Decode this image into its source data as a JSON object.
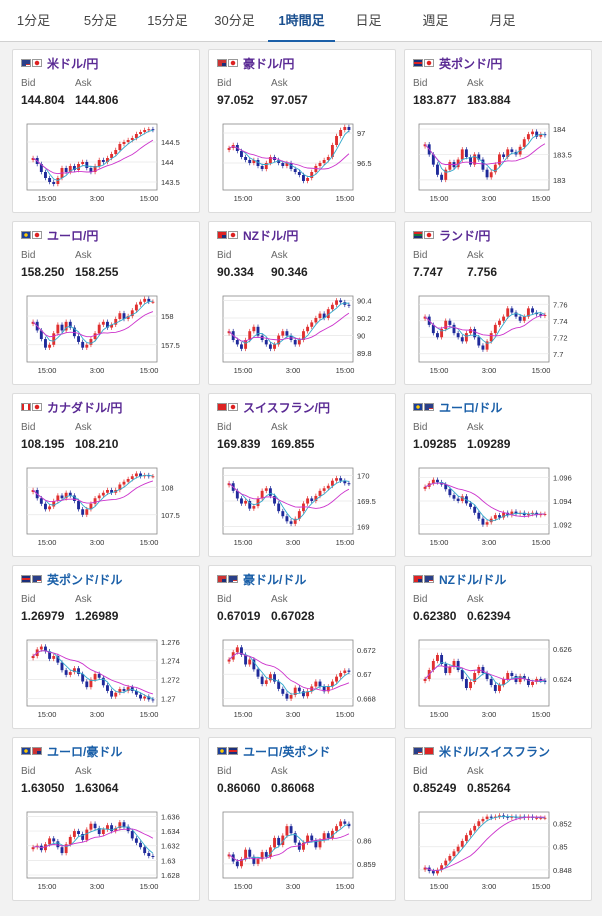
{
  "tabs": [
    {
      "label": "1分足",
      "active": false
    },
    {
      "label": "5分足",
      "active": false
    },
    {
      "label": "15分足",
      "active": false
    },
    {
      "label": "30分足",
      "active": false
    },
    {
      "label": "1時間足",
      "active": true
    },
    {
      "label": "日足",
      "active": false
    },
    {
      "label": "週足",
      "active": false
    },
    {
      "label": "月足",
      "active": false
    }
  ],
  "labels": {
    "bid": "Bid",
    "ask": "Ask"
  },
  "colors": {
    "up": "#e03030",
    "down": "#1f2a9a",
    "ma_short": "#33aacc",
    "ma_long": "#cc33cc",
    "jpy_pair": "#5a2a94",
    "usd_pair": "#1a5fa8"
  },
  "x_ticks": [
    "15:00",
    "3:00",
    "15:00"
  ],
  "cards": [
    {
      "pair": "米ドル/円",
      "quote": "jpy",
      "flags": [
        "us-flag-icon",
        "jp-flag-icon"
      ],
      "bid": "144.804",
      "ask": "144.806",
      "chart_data": {
        "type": "candlestick",
        "y_ticks": [
          "144.5",
          "144",
          "143.5"
        ],
        "ylim": [
          143.3,
          144.95
        ],
        "x_ticks": [
          "15:00",
          "3:00",
          "15:00"
        ],
        "close": [
          144.1,
          143.95,
          143.75,
          143.6,
          143.5,
          143.45,
          143.6,
          143.85,
          143.75,
          143.9,
          143.8,
          143.95,
          144.0,
          143.85,
          143.75,
          143.9,
          144.05,
          144.0,
          144.1,
          144.2,
          144.3,
          144.45,
          144.5,
          144.55,
          144.6,
          144.7,
          144.75,
          144.8,
          144.82,
          144.8
        ]
      }
    },
    {
      "pair": "豪ドル/円",
      "quote": "jpy",
      "flags": [
        "au-flag-icon",
        "jp-flag-icon"
      ],
      "bid": "97.052",
      "ask": "97.057",
      "chart_data": {
        "type": "candlestick",
        "y_ticks": [
          "97",
          "96.5"
        ],
        "ylim": [
          96.05,
          97.15
        ],
        "x_ticks": [
          "15:00",
          "3:00",
          "15:00"
        ],
        "close": [
          96.75,
          96.8,
          96.7,
          96.6,
          96.55,
          96.5,
          96.55,
          96.45,
          96.4,
          96.5,
          96.6,
          96.55,
          96.5,
          96.45,
          96.5,
          96.4,
          96.35,
          96.3,
          96.2,
          96.25,
          96.35,
          96.45,
          96.5,
          96.55,
          96.6,
          96.8,
          96.95,
          97.05,
          97.1,
          97.05
        ]
      }
    },
    {
      "pair": "英ポンド/円",
      "quote": "jpy",
      "flags": [
        "uk-flag-icon",
        "jp-flag-icon"
      ],
      "bid": "183.877",
      "ask": "183.884",
      "chart_data": {
        "type": "candlestick",
        "y_ticks": [
          "184",
          "183.5",
          "183"
        ],
        "ylim": [
          182.8,
          184.1
        ],
        "x_ticks": [
          "15:00",
          "3:00",
          "15:00"
        ],
        "close": [
          183.7,
          183.5,
          183.3,
          183.1,
          183.0,
          183.2,
          183.35,
          183.25,
          183.4,
          183.6,
          183.45,
          183.3,
          183.5,
          183.4,
          183.2,
          183.05,
          183.15,
          183.3,
          183.5,
          183.45,
          183.6,
          183.55,
          183.5,
          183.65,
          183.8,
          183.9,
          183.95,
          183.85,
          183.9,
          183.88
        ]
      }
    },
    {
      "pair": "ユーロ/円",
      "quote": "jpy",
      "flags": [
        "eu-flag-icon",
        "jp-flag-icon"
      ],
      "bid": "158.250",
      "ask": "158.255",
      "chart_data": {
        "type": "candlestick",
        "y_ticks": [
          "158",
          "157.5"
        ],
        "ylim": [
          157.2,
          158.35
        ],
        "x_ticks": [
          "15:00",
          "3:00",
          "15:00"
        ],
        "close": [
          157.9,
          157.75,
          157.6,
          157.45,
          157.5,
          157.7,
          157.85,
          157.75,
          157.9,
          157.8,
          157.65,
          157.55,
          157.45,
          157.5,
          157.6,
          157.7,
          157.85,
          157.9,
          157.8,
          157.85,
          157.95,
          158.05,
          157.95,
          158.0,
          158.1,
          158.2,
          158.25,
          158.3,
          158.25,
          158.25
        ]
      }
    },
    {
      "pair": "NZドル/円",
      "quote": "jpy",
      "flags": [
        "nz-flag-icon",
        "jp-flag-icon"
      ],
      "bid": "90.334",
      "ask": "90.346",
      "chart_data": {
        "type": "candlestick",
        "y_ticks": [
          "90.4",
          "90.2",
          "90",
          "89.8"
        ],
        "ylim": [
          89.7,
          90.45
        ],
        "x_ticks": [
          "15:00",
          "3:00",
          "15:00"
        ],
        "close": [
          90.05,
          89.95,
          89.9,
          89.85,
          89.95,
          90.05,
          90.1,
          90.0,
          89.95,
          89.9,
          89.85,
          89.9,
          90.0,
          90.05,
          90.0,
          89.95,
          89.9,
          89.95,
          90.05,
          90.1,
          90.15,
          90.2,
          90.25,
          90.2,
          90.3,
          90.35,
          90.4,
          90.38,
          90.35,
          90.34
        ]
      }
    },
    {
      "pair": "ランド/円",
      "quote": "jpy",
      "flags": [
        "za-flag-icon",
        "jp-flag-icon"
      ],
      "bid": "7.747",
      "ask": "7.756",
      "chart_data": {
        "type": "candlestick",
        "y_ticks": [
          "7.76",
          "7.74",
          "7.72",
          "7.7"
        ],
        "ylim": [
          7.69,
          7.77
        ],
        "x_ticks": [
          "15:00",
          "3:00",
          "15:00"
        ],
        "close": [
          7.745,
          7.735,
          7.725,
          7.72,
          7.73,
          7.74,
          7.735,
          7.725,
          7.72,
          7.715,
          7.725,
          7.73,
          7.72,
          7.71,
          7.705,
          7.715,
          7.725,
          7.735,
          7.74,
          7.745,
          7.755,
          7.75,
          7.745,
          7.74,
          7.745,
          7.755,
          7.75,
          7.748,
          7.746,
          7.747
        ]
      }
    },
    {
      "pair": "カナダドル/円",
      "quote": "jpy",
      "flags": [
        "ca-flag-icon",
        "jp-flag-icon"
      ],
      "bid": "108.195",
      "ask": "108.210",
      "chart_data": {
        "type": "candlestick",
        "y_ticks": [
          "108",
          "107.5"
        ],
        "ylim": [
          107.15,
          108.35
        ],
        "x_ticks": [
          "15:00",
          "3:00",
          "15:00"
        ],
        "close": [
          107.95,
          107.8,
          107.7,
          107.6,
          107.65,
          107.75,
          107.85,
          107.8,
          107.9,
          107.85,
          107.75,
          107.6,
          107.5,
          107.6,
          107.7,
          107.8,
          107.85,
          107.9,
          107.95,
          107.9,
          107.95,
          108.05,
          108.1,
          108.15,
          108.2,
          108.25,
          108.2,
          108.22,
          108.2,
          108.2
        ]
      }
    },
    {
      "pair": "スイスフラン/円",
      "quote": "jpy",
      "flags": [
        "ch-flag-icon",
        "jp-flag-icon"
      ],
      "bid": "169.839",
      "ask": "169.855",
      "chart_data": {
        "type": "candlestick",
        "y_ticks": [
          "170",
          "169.5",
          "169"
        ],
        "ylim": [
          168.85,
          170.15
        ],
        "x_ticks": [
          "15:00",
          "3:00",
          "15:00"
        ],
        "close": [
          169.85,
          169.7,
          169.55,
          169.45,
          169.5,
          169.35,
          169.4,
          169.55,
          169.7,
          169.75,
          169.6,
          169.45,
          169.3,
          169.2,
          169.1,
          169.05,
          169.15,
          169.3,
          169.45,
          169.55,
          169.5,
          169.6,
          169.7,
          169.75,
          169.8,
          169.9,
          169.95,
          169.9,
          169.85,
          169.84
        ]
      }
    },
    {
      "pair": "ユーロ/ドル",
      "quote": "usd",
      "flags": [
        "eu-flag-icon",
        "us-flag-icon"
      ],
      "bid": "1.09285",
      "ask": "1.09289",
      "chart_data": {
        "type": "candlestick",
        "y_ticks": [
          "1.096",
          "1.094",
          "1.092"
        ],
        "ylim": [
          1.0912,
          1.0968
        ],
        "x_ticks": [
          "15:00",
          "3:00",
          "15:00"
        ],
        "close": [
          1.0952,
          1.0955,
          1.0958,
          1.0956,
          1.0954,
          1.095,
          1.0945,
          1.0942,
          1.094,
          1.0944,
          1.0938,
          1.0935,
          1.093,
          1.0925,
          1.092,
          1.0922,
          1.0925,
          1.0928,
          1.0926,
          1.093,
          1.0928,
          1.0931,
          1.0929,
          1.093,
          1.0928,
          1.0929,
          1.093,
          1.0928,
          1.0929,
          1.0929
        ]
      }
    },
    {
      "pair": "英ポンド/ドル",
      "quote": "usd",
      "flags": [
        "uk-flag-icon",
        "us-flag-icon"
      ],
      "bid": "1.26979",
      "ask": "1.26989",
      "chart_data": {
        "type": "candlestick",
        "y_ticks": [
          "1.276",
          "1.274",
          "1.272",
          "1.27"
        ],
        "ylim": [
          1.2692,
          1.2762
        ],
        "x_ticks": [
          "15:00",
          "3:00",
          "15:00"
        ],
        "close": [
          1.2745,
          1.2752,
          1.2755,
          1.275,
          1.2742,
          1.2745,
          1.2738,
          1.273,
          1.2725,
          1.2728,
          1.2732,
          1.2726,
          1.2718,
          1.2712,
          1.272,
          1.2726,
          1.2722,
          1.2714,
          1.2708,
          1.2702,
          1.2706,
          1.271,
          1.2708,
          1.2712,
          1.2708,
          1.2704,
          1.27,
          1.2702,
          1.2699,
          1.2698
        ]
      }
    },
    {
      "pair": "豪ドル/ドル",
      "quote": "usd",
      "flags": [
        "au-flag-icon",
        "us-flag-icon"
      ],
      "bid": "0.67019",
      "ask": "0.67028",
      "chart_data": {
        "type": "candlestick",
        "y_ticks": [
          "0.672",
          "0.67",
          "0.668"
        ],
        "ylim": [
          0.6674,
          0.6728
        ],
        "x_ticks": [
          "15:00",
          "3:00",
          "15:00"
        ],
        "close": [
          0.6712,
          0.6718,
          0.6722,
          0.6716,
          0.6708,
          0.6712,
          0.6704,
          0.6698,
          0.6692,
          0.6695,
          0.67,
          0.6694,
          0.6688,
          0.6684,
          0.668,
          0.6683,
          0.6689,
          0.6686,
          0.6682,
          0.6686,
          0.669,
          0.6694,
          0.669,
          0.6686,
          0.669,
          0.6694,
          0.6698,
          0.6701,
          0.6703,
          0.6702
        ]
      }
    },
    {
      "pair": "NZドル/ドル",
      "quote": "usd",
      "flags": [
        "nz-flag-icon",
        "us-flag-icon"
      ],
      "bid": "0.62380",
      "ask": "0.62394",
      "chart_data": {
        "type": "candlestick",
        "y_ticks": [
          "0.626",
          "0.624"
        ],
        "ylim": [
          0.6222,
          0.6266
        ],
        "x_ticks": [
          "15:00",
          "3:00",
          "15:00"
        ],
        "close": [
          0.624,
          0.6246,
          0.6252,
          0.6256,
          0.625,
          0.6244,
          0.6248,
          0.6252,
          0.6246,
          0.624,
          0.6234,
          0.6238,
          0.6244,
          0.6248,
          0.6244,
          0.624,
          0.6236,
          0.6232,
          0.6236,
          0.624,
          0.6244,
          0.6242,
          0.6238,
          0.6242,
          0.624,
          0.6236,
          0.6238,
          0.624,
          0.6239,
          0.6238
        ]
      }
    },
    {
      "pair": "ユーロ/豪ドル",
      "quote": "usd",
      "flags": [
        "eu-flag-icon",
        "au-flag-icon"
      ],
      "bid": "1.63050",
      "ask": "1.63064",
      "chart_data": {
        "type": "candlestick",
        "y_ticks": [
          "1.636",
          "1.634",
          "1.632",
          "1.63",
          "1.628"
        ],
        "ylim": [
          1.6276,
          1.6366
        ],
        "x_ticks": [
          "15:00",
          "3:00",
          "15:00"
        ],
        "close": [
          1.6318,
          1.632,
          1.6314,
          1.6322,
          1.633,
          1.6326,
          1.6318,
          1.631,
          1.6322,
          1.6332,
          1.634,
          1.6336,
          1.6328,
          1.6342,
          1.635,
          1.6344,
          1.6336,
          1.6342,
          1.6348,
          1.634,
          1.6344,
          1.6352,
          1.6346,
          1.634,
          1.633,
          1.6324,
          1.6318,
          1.631,
          1.6306,
          1.6305
        ]
      }
    },
    {
      "pair": "ユーロ/英ポンド",
      "quote": "usd",
      "flags": [
        "eu-flag-icon",
        "uk-flag-icon"
      ],
      "bid": "0.86060",
      "ask": "0.86068",
      "chart_data": {
        "type": "candlestick",
        "y_ticks": [
          "0.86",
          "0.859"
        ],
        "ylim": [
          0.8584,
          0.8612
        ],
        "x_ticks": [
          "15:00",
          "3:00",
          "15:00"
        ],
        "close": [
          0.8594,
          0.8591,
          0.8589,
          0.8592,
          0.8596,
          0.8593,
          0.859,
          0.8592,
          0.8595,
          0.8593,
          0.8597,
          0.8601,
          0.8598,
          0.8602,
          0.8606,
          0.8603,
          0.8599,
          0.8596,
          0.8599,
          0.8602,
          0.86,
          0.8597,
          0.86,
          0.8603,
          0.8601,
          0.8604,
          0.8606,
          0.8608,
          0.8607,
          0.8606
        ]
      }
    },
    {
      "pair": "米ドル/スイスフラン",
      "quote": "usd",
      "flags": [
        "us-flag-icon",
        "ch-flag-icon"
      ],
      "bid": "0.85249",
      "ask": "0.85264",
      "chart_data": {
        "type": "candlestick",
        "y_ticks": [
          "0.852",
          "0.85",
          "0.848"
        ],
        "ylim": [
          0.8473,
          0.853
        ],
        "x_ticks": [
          "15:00",
          "3:00",
          "15:00"
        ],
        "close": [
          0.8482,
          0.8479,
          0.8477,
          0.848,
          0.8484,
          0.8488,
          0.8492,
          0.8496,
          0.85,
          0.8505,
          0.851,
          0.8514,
          0.8518,
          0.8522,
          0.8524,
          0.8526,
          0.8525,
          0.8526,
          0.8527,
          0.8526,
          0.8525,
          0.8526,
          0.8525,
          0.8526,
          0.8525,
          0.8526,
          0.8525,
          0.8525,
          0.8525,
          0.8525
        ]
      }
    }
  ]
}
